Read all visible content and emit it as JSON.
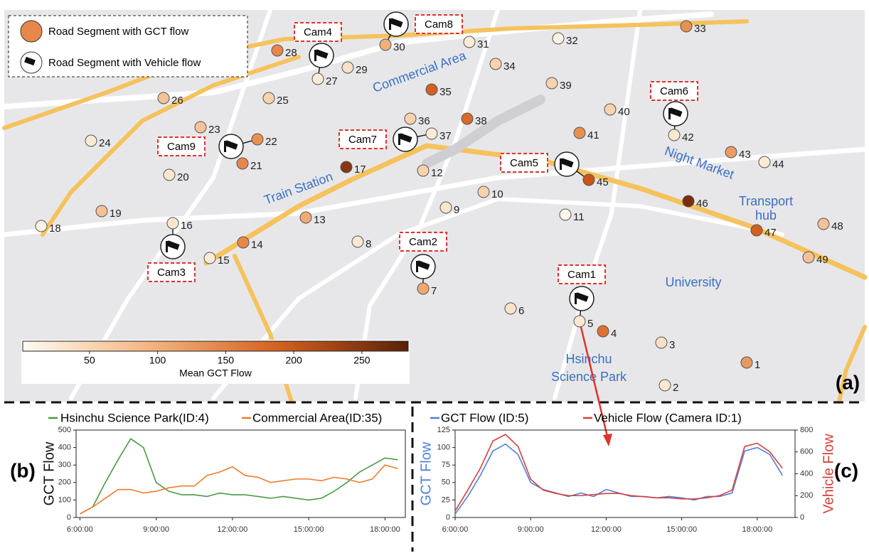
{
  "map": {
    "legend": [
      "Road Segment with GCT flow",
      "Road Segment with Vehicle flow"
    ],
    "places": {
      "commercial": "Commercial Area",
      "train": "Train Station",
      "night": "Night Market",
      "transport": [
        "Transport",
        "hub"
      ],
      "university": "University",
      "park": [
        "Hsinchu",
        "Science Park"
      ]
    },
    "cams": [
      "Cam1",
      "Cam2",
      "Cam3",
      "Cam4",
      "Cam5",
      "Cam6",
      "Cam7",
      "Cam8",
      "Cam9"
    ],
    "nodes": [
      {
        "label": "1",
        "color": "#e89a5e"
      },
      {
        "label": "2",
        "color": "#fce8d4"
      },
      {
        "label": "3",
        "color": "#fbe0c6"
      },
      {
        "label": "4",
        "color": "#e0702e"
      },
      {
        "label": "5",
        "color": "#fde9d2"
      },
      {
        "label": "6",
        "color": "#fce3c9"
      },
      {
        "label": "7",
        "color": "#f0a770"
      },
      {
        "label": "8",
        "color": "#fde9d2"
      },
      {
        "label": "9",
        "color": "#fce6cd"
      },
      {
        "label": "10",
        "color": "#f8d2ad"
      },
      {
        "label": "11",
        "color": "#fff5ea"
      },
      {
        "label": "12",
        "color": "#f8d2ad"
      },
      {
        "label": "13",
        "color": "#f0ab75"
      },
      {
        "label": "14",
        "color": "#e8874a"
      },
      {
        "label": "15",
        "color": "#fdebd8"
      },
      {
        "label": "16",
        "color": "#fde6cf"
      },
      {
        "label": "17",
        "color": "#8a3510"
      },
      {
        "label": "18",
        "color": "#fff3e6"
      },
      {
        "label": "19",
        "color": "#f5c196"
      },
      {
        "label": "20",
        "color": "#fbe6d0"
      },
      {
        "label": "21",
        "color": "#e8874a"
      },
      {
        "label": "22",
        "color": "#e8914f"
      },
      {
        "label": "23",
        "color": "#f5c49a"
      },
      {
        "label": "24",
        "color": "#fde9d2"
      },
      {
        "label": "25",
        "color": "#f8d3ae"
      },
      {
        "label": "26",
        "color": "#f5c196"
      },
      {
        "label": "27",
        "color": "#fdebd8"
      },
      {
        "label": "28",
        "color": "#e8874a"
      },
      {
        "label": "29",
        "color": "#fae0c4"
      },
      {
        "label": "30",
        "color": "#f0b07c"
      },
      {
        "label": "31",
        "color": "#fdebd8"
      },
      {
        "label": "32",
        "color": "#fff3e6"
      },
      {
        "label": "33",
        "color": "#e8914f"
      },
      {
        "label": "34",
        "color": "#f8d3ae"
      },
      {
        "label": "35",
        "color": "#d2601f"
      },
      {
        "label": "36",
        "color": "#f8d3ae"
      },
      {
        "label": "37",
        "color": "#fdebd8"
      },
      {
        "label": "38",
        "color": "#d86a2a"
      },
      {
        "label": "39",
        "color": "#f8d3ae"
      },
      {
        "label": "40",
        "color": "#f8d3ae"
      },
      {
        "label": "41",
        "color": "#e8914f"
      },
      {
        "label": "42",
        "color": "#fde9d2"
      },
      {
        "label": "43",
        "color": "#ec9b62"
      },
      {
        "label": "44",
        "color": "#fdebd8"
      },
      {
        "label": "45",
        "color": "#c9531b"
      },
      {
        "label": "46",
        "color": "#7a2d0c"
      },
      {
        "label": "47",
        "color": "#d2601f"
      },
      {
        "label": "48",
        "color": "#f5c196"
      },
      {
        "label": "49",
        "color": "#f5c196"
      }
    ],
    "colorbar": {
      "label": "Mean GCT Flow",
      "lim": [
        1,
        284
      ],
      "ticks": [
        50,
        100,
        150,
        200,
        250
      ],
      "colors": [
        "#fffaf3",
        "#f3b47e",
        "#d2601f",
        "#5a2008"
      ]
    },
    "panel": "(a)"
  },
  "chart_data": [
    {
      "type": "line",
      "panel": "(b)",
      "ylabel": "GCT Flow",
      "x": [
        6,
        6.5,
        7,
        7.5,
        8,
        8.5,
        9,
        9.5,
        10,
        10.5,
        11,
        11.5,
        12,
        12.5,
        13,
        13.5,
        14,
        14.5,
        15,
        15.5,
        16,
        16.5,
        17,
        17.5,
        18,
        18.5
      ],
      "series": [
        {
          "name": "Hsinchu Science Park(ID:4)",
          "color": "#4c9a45",
          "values": [
            20,
            60,
            200,
            330,
            450,
            400,
            200,
            150,
            130,
            130,
            120,
            140,
            130,
            130,
            120,
            110,
            120,
            110,
            100,
            110,
            150,
            200,
            260,
            300,
            340,
            330
          ]
        },
        {
          "name": "Commercial Area(ID:35)",
          "color": "#ef7d2e",
          "values": [
            20,
            60,
            110,
            160,
            160,
            140,
            150,
            170,
            180,
            180,
            240,
            260,
            290,
            240,
            230,
            200,
            210,
            220,
            220,
            210,
            230,
            220,
            200,
            220,
            300,
            280
          ]
        }
      ],
      "xlim": [
        5.85,
        18.8
      ],
      "xticks": [
        {
          "value": 6,
          "label": "6:00:00"
        },
        {
          "value": 9,
          "label": "9:00:00"
        },
        {
          "value": 12,
          "label": "12:00:00"
        },
        {
          "value": 15,
          "label": "15:00:00"
        },
        {
          "value": 18,
          "label": "18:00:00"
        }
      ],
      "ylim": [
        0,
        500
      ],
      "yticks": [
        0,
        100,
        200,
        300,
        400,
        500
      ]
    },
    {
      "type": "line",
      "panel": "(c)",
      "ylabel": "GCT Flow",
      "y2label": "Vehicle Flow",
      "x": [
        6,
        6.5,
        7,
        7.5,
        8,
        8.5,
        9,
        9.5,
        10,
        10.5,
        11,
        11.5,
        12,
        12.5,
        13,
        13.5,
        14,
        14.5,
        15,
        15.5,
        16,
        16.5,
        17,
        17.5,
        18,
        18.5,
        19
      ],
      "series": [
        {
          "name": "GCT Flow (ID:5)",
          "color": "#4f7fdc",
          "values": [
            5,
            30,
            60,
            95,
            105,
            90,
            50,
            40,
            35,
            30,
            35,
            30,
            40,
            35,
            30,
            30,
            28,
            30,
            28,
            25,
            30,
            30,
            35,
            95,
            100,
            90,
            60
          ]
        },
        {
          "name": "Vehicle Flow (Camera ID:1)",
          "color": "#d9403a",
          "axis": "y2",
          "values": [
            60,
            250,
            450,
            700,
            760,
            650,
            350,
            250,
            220,
            200,
            200,
            210,
            220,
            220,
            200,
            190,
            180,
            180,
            170,
            170,
            180,
            200,
            250,
            650,
            680,
            600,
            450
          ]
        }
      ],
      "xlim": [
        6,
        19.5
      ],
      "xticks": [
        {
          "value": 6,
          "label": "6:00:00"
        },
        {
          "value": 9,
          "label": "9:00:00"
        },
        {
          "value": 12,
          "label": "12:00:00"
        },
        {
          "value": 15,
          "label": "15:00:00"
        },
        {
          "value": 18,
          "label": "18:00:00"
        }
      ],
      "ylim": [
        0,
        125
      ],
      "yticks": [
        0,
        25,
        50,
        75,
        100,
        125
      ],
      "y2lim": [
        0,
        800
      ],
      "y2ticks": [
        0,
        200,
        400,
        600,
        800
      ]
    }
  ]
}
